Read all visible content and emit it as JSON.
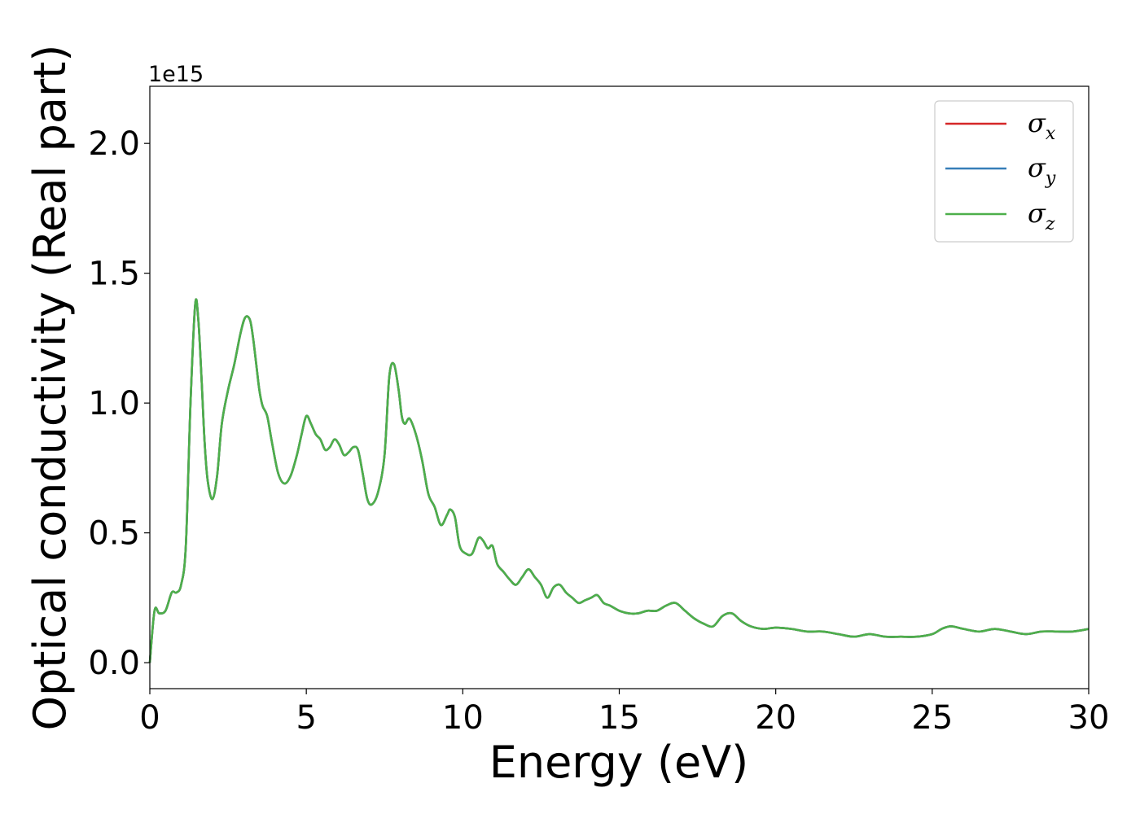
{
  "chart_data": {
    "type": "line",
    "title": "",
    "xlabel": "Energy (eV)",
    "ylabel": "Optical conductivity (Real part)",
    "y_offset_label": "1e15",
    "xlim": [
      0,
      30
    ],
    "ylim": [
      -0.1,
      2.22
    ],
    "x_ticks": [
      0,
      5,
      10,
      15,
      20,
      25,
      30
    ],
    "x_tick_labels": [
      "0",
      "5",
      "10",
      "15",
      "20",
      "25",
      "30"
    ],
    "y_ticks": [
      0.0,
      0.5,
      1.0,
      1.5,
      2.0
    ],
    "y_tick_labels": [
      "0.0",
      "0.5",
      "1.0",
      "1.5",
      "2.0"
    ],
    "grid": false,
    "legend_position": "top-right",
    "series": [
      {
        "name": "σx",
        "symbol": "σ",
        "subscript": "x",
        "color": "#d62728",
        "x": [
          0,
          0.15,
          0.3,
          0.5,
          0.7,
          0.85,
          1.0,
          1.15,
          1.3,
          1.45,
          1.55,
          1.65,
          1.75,
          1.85,
          2.0,
          2.15,
          2.3,
          2.5,
          2.7,
          2.9,
          3.05,
          3.2,
          3.3,
          3.4,
          3.5,
          3.6,
          3.75,
          3.9,
          4.1,
          4.3,
          4.5,
          4.7,
          4.85,
          5.0,
          5.15,
          5.3,
          5.45,
          5.6,
          5.75,
          5.9,
          6.05,
          6.2,
          6.35,
          6.5,
          6.65,
          6.8,
          6.95,
          7.1,
          7.3,
          7.5,
          7.65,
          7.8,
          7.95,
          8.05,
          8.15,
          8.3,
          8.5,
          8.7,
          8.9,
          9.1,
          9.3,
          9.5,
          9.6,
          9.75,
          9.9,
          10.1,
          10.3,
          10.5,
          10.65,
          10.8,
          10.95,
          11.1,
          11.3,
          11.5,
          11.7,
          11.9,
          12.1,
          12.3,
          12.5,
          12.7,
          12.9,
          13.1,
          13.3,
          13.5,
          13.7,
          13.9,
          14.1,
          14.3,
          14.5,
          14.7,
          15.0,
          15.3,
          15.6,
          15.9,
          16.2,
          16.5,
          16.8,
          17.1,
          17.4,
          17.7,
          18.0,
          18.3,
          18.6,
          18.9,
          19.2,
          19.6,
          20.0,
          20.5,
          21.0,
          21.5,
          22.0,
          22.5,
          23.0,
          23.5,
          24.0,
          24.5,
          25.0,
          25.3,
          25.6,
          26.0,
          26.5,
          27.0,
          27.5,
          28.0,
          28.5,
          29.0,
          29.5,
          30.0
        ],
        "y": [
          0.0,
          0.2,
          0.19,
          0.2,
          0.27,
          0.27,
          0.3,
          0.45,
          1.0,
          1.38,
          1.32,
          1.1,
          0.85,
          0.7,
          0.63,
          0.72,
          0.92,
          1.05,
          1.15,
          1.27,
          1.33,
          1.32,
          1.25,
          1.15,
          1.05,
          0.99,
          0.95,
          0.85,
          0.73,
          0.69,
          0.72,
          0.8,
          0.88,
          0.95,
          0.92,
          0.88,
          0.86,
          0.82,
          0.83,
          0.86,
          0.84,
          0.8,
          0.81,
          0.83,
          0.82,
          0.73,
          0.63,
          0.61,
          0.66,
          0.8,
          1.1,
          1.15,
          1.05,
          0.95,
          0.92,
          0.94,
          0.88,
          0.78,
          0.65,
          0.6,
          0.53,
          0.57,
          0.59,
          0.56,
          0.45,
          0.42,
          0.42,
          0.48,
          0.47,
          0.44,
          0.45,
          0.38,
          0.35,
          0.32,
          0.3,
          0.33,
          0.36,
          0.33,
          0.3,
          0.25,
          0.29,
          0.3,
          0.27,
          0.25,
          0.23,
          0.24,
          0.25,
          0.26,
          0.23,
          0.22,
          0.2,
          0.19,
          0.19,
          0.2,
          0.2,
          0.22,
          0.23,
          0.2,
          0.17,
          0.15,
          0.14,
          0.18,
          0.19,
          0.16,
          0.14,
          0.13,
          0.135,
          0.13,
          0.12,
          0.12,
          0.11,
          0.1,
          0.11,
          0.1,
          0.1,
          0.1,
          0.11,
          0.13,
          0.14,
          0.13,
          0.12,
          0.13,
          0.12,
          0.11,
          0.12,
          0.12,
          0.12,
          0.13
        ]
      },
      {
        "name": "σy",
        "symbol": "σ",
        "subscript": "y",
        "color": "#377eb8",
        "x": [
          0,
          0.15,
          0.3,
          0.5,
          0.7,
          0.85,
          1.0,
          1.15,
          1.3,
          1.45,
          1.55,
          1.65,
          1.75,
          1.85,
          2.0,
          2.15,
          2.3,
          2.5,
          2.7,
          2.9,
          3.05,
          3.2,
          3.3,
          3.4,
          3.5,
          3.6,
          3.75,
          3.9,
          4.1,
          4.3,
          4.5,
          4.7,
          4.85,
          5.0,
          5.15,
          5.3,
          5.45,
          5.6,
          5.75,
          5.9,
          6.05,
          6.2,
          6.35,
          6.5,
          6.65,
          6.8,
          6.95,
          7.1,
          7.3,
          7.5,
          7.65,
          7.8,
          7.95,
          8.05,
          8.15,
          8.3,
          8.5,
          8.7,
          8.9,
          9.1,
          9.3,
          9.5,
          9.6,
          9.75,
          9.9,
          10.1,
          10.3,
          10.5,
          10.65,
          10.8,
          10.95,
          11.1,
          11.3,
          11.5,
          11.7,
          11.9,
          12.1,
          12.3,
          12.5,
          12.7,
          12.9,
          13.1,
          13.3,
          13.5,
          13.7,
          13.9,
          14.1,
          14.3,
          14.5,
          14.7,
          15.0,
          15.3,
          15.6,
          15.9,
          16.2,
          16.5,
          16.8,
          17.1,
          17.4,
          17.7,
          18.0,
          18.3,
          18.6,
          18.9,
          19.2,
          19.6,
          20.0,
          20.5,
          21.0,
          21.5,
          22.0,
          22.5,
          23.0,
          23.5,
          24.0,
          24.5,
          25.0,
          25.3,
          25.6,
          26.0,
          26.5,
          27.0,
          27.5,
          28.0,
          28.5,
          29.0,
          29.5,
          30.0
        ],
        "y": [
          0.0,
          0.2,
          0.19,
          0.2,
          0.27,
          0.27,
          0.3,
          0.45,
          1.0,
          1.38,
          1.32,
          1.1,
          0.85,
          0.7,
          0.63,
          0.72,
          0.92,
          1.05,
          1.15,
          1.27,
          1.33,
          1.32,
          1.25,
          1.15,
          1.05,
          0.99,
          0.95,
          0.85,
          0.73,
          0.69,
          0.72,
          0.8,
          0.88,
          0.95,
          0.92,
          0.88,
          0.86,
          0.82,
          0.83,
          0.86,
          0.84,
          0.8,
          0.81,
          0.83,
          0.82,
          0.73,
          0.63,
          0.61,
          0.66,
          0.8,
          1.1,
          1.15,
          1.05,
          0.95,
          0.92,
          0.94,
          0.88,
          0.78,
          0.65,
          0.6,
          0.53,
          0.57,
          0.59,
          0.56,
          0.45,
          0.42,
          0.42,
          0.48,
          0.47,
          0.44,
          0.45,
          0.38,
          0.35,
          0.32,
          0.3,
          0.33,
          0.36,
          0.33,
          0.3,
          0.25,
          0.29,
          0.3,
          0.27,
          0.25,
          0.23,
          0.24,
          0.25,
          0.26,
          0.23,
          0.22,
          0.2,
          0.19,
          0.19,
          0.2,
          0.2,
          0.22,
          0.23,
          0.2,
          0.17,
          0.15,
          0.14,
          0.18,
          0.19,
          0.16,
          0.14,
          0.13,
          0.135,
          0.13,
          0.12,
          0.12,
          0.11,
          0.1,
          0.11,
          0.1,
          0.1,
          0.1,
          0.11,
          0.13,
          0.14,
          0.13,
          0.12,
          0.13,
          0.12,
          0.11,
          0.12,
          0.12,
          0.12,
          0.13
        ]
      },
      {
        "name": "σz",
        "symbol": "σ",
        "subscript": "z",
        "color": "#4daf4a",
        "x": [
          0,
          0.15,
          0.3,
          0.5,
          0.7,
          0.85,
          1.0,
          1.15,
          1.3,
          1.45,
          1.55,
          1.65,
          1.75,
          1.85,
          2.0,
          2.15,
          2.3,
          2.5,
          2.7,
          2.9,
          3.05,
          3.2,
          3.3,
          3.4,
          3.5,
          3.6,
          3.75,
          3.9,
          4.1,
          4.3,
          4.5,
          4.7,
          4.85,
          5.0,
          5.15,
          5.3,
          5.45,
          5.6,
          5.75,
          5.9,
          6.05,
          6.2,
          6.35,
          6.5,
          6.65,
          6.8,
          6.95,
          7.1,
          7.3,
          7.5,
          7.65,
          7.8,
          7.95,
          8.05,
          8.15,
          8.3,
          8.5,
          8.7,
          8.9,
          9.1,
          9.3,
          9.5,
          9.6,
          9.75,
          9.9,
          10.1,
          10.3,
          10.5,
          10.65,
          10.8,
          10.95,
          11.1,
          11.3,
          11.5,
          11.7,
          11.9,
          12.1,
          12.3,
          12.5,
          12.7,
          12.9,
          13.1,
          13.3,
          13.5,
          13.7,
          13.9,
          14.1,
          14.3,
          14.5,
          14.7,
          15.0,
          15.3,
          15.6,
          15.9,
          16.2,
          16.5,
          16.8,
          17.1,
          17.4,
          17.7,
          18.0,
          18.3,
          18.6,
          18.9,
          19.2,
          19.6,
          20.0,
          20.5,
          21.0,
          21.5,
          22.0,
          22.5,
          23.0,
          23.5,
          24.0,
          24.5,
          25.0,
          25.3,
          25.6,
          26.0,
          26.5,
          27.0,
          27.5,
          28.0,
          28.5,
          29.0,
          29.5,
          30.0
        ],
        "y": [
          0.0,
          0.2,
          0.19,
          0.2,
          0.27,
          0.27,
          0.3,
          0.45,
          1.0,
          1.38,
          1.32,
          1.1,
          0.85,
          0.7,
          0.63,
          0.72,
          0.92,
          1.05,
          1.15,
          1.27,
          1.33,
          1.32,
          1.25,
          1.15,
          1.05,
          0.99,
          0.95,
          0.85,
          0.73,
          0.69,
          0.72,
          0.8,
          0.88,
          0.95,
          0.92,
          0.88,
          0.86,
          0.82,
          0.83,
          0.86,
          0.84,
          0.8,
          0.81,
          0.83,
          0.82,
          0.73,
          0.63,
          0.61,
          0.66,
          0.8,
          1.1,
          1.15,
          1.05,
          0.95,
          0.92,
          0.94,
          0.88,
          0.78,
          0.65,
          0.6,
          0.53,
          0.57,
          0.59,
          0.56,
          0.45,
          0.42,
          0.42,
          0.48,
          0.47,
          0.44,
          0.45,
          0.38,
          0.35,
          0.32,
          0.3,
          0.33,
          0.36,
          0.33,
          0.3,
          0.25,
          0.29,
          0.3,
          0.27,
          0.25,
          0.23,
          0.24,
          0.25,
          0.26,
          0.23,
          0.22,
          0.2,
          0.19,
          0.19,
          0.2,
          0.2,
          0.22,
          0.23,
          0.2,
          0.17,
          0.15,
          0.14,
          0.18,
          0.19,
          0.16,
          0.14,
          0.13,
          0.135,
          0.13,
          0.12,
          0.12,
          0.11,
          0.1,
          0.11,
          0.1,
          0.1,
          0.1,
          0.11,
          0.13,
          0.14,
          0.13,
          0.12,
          0.13,
          0.12,
          0.11,
          0.12,
          0.12,
          0.12,
          0.13
        ]
      }
    ]
  }
}
